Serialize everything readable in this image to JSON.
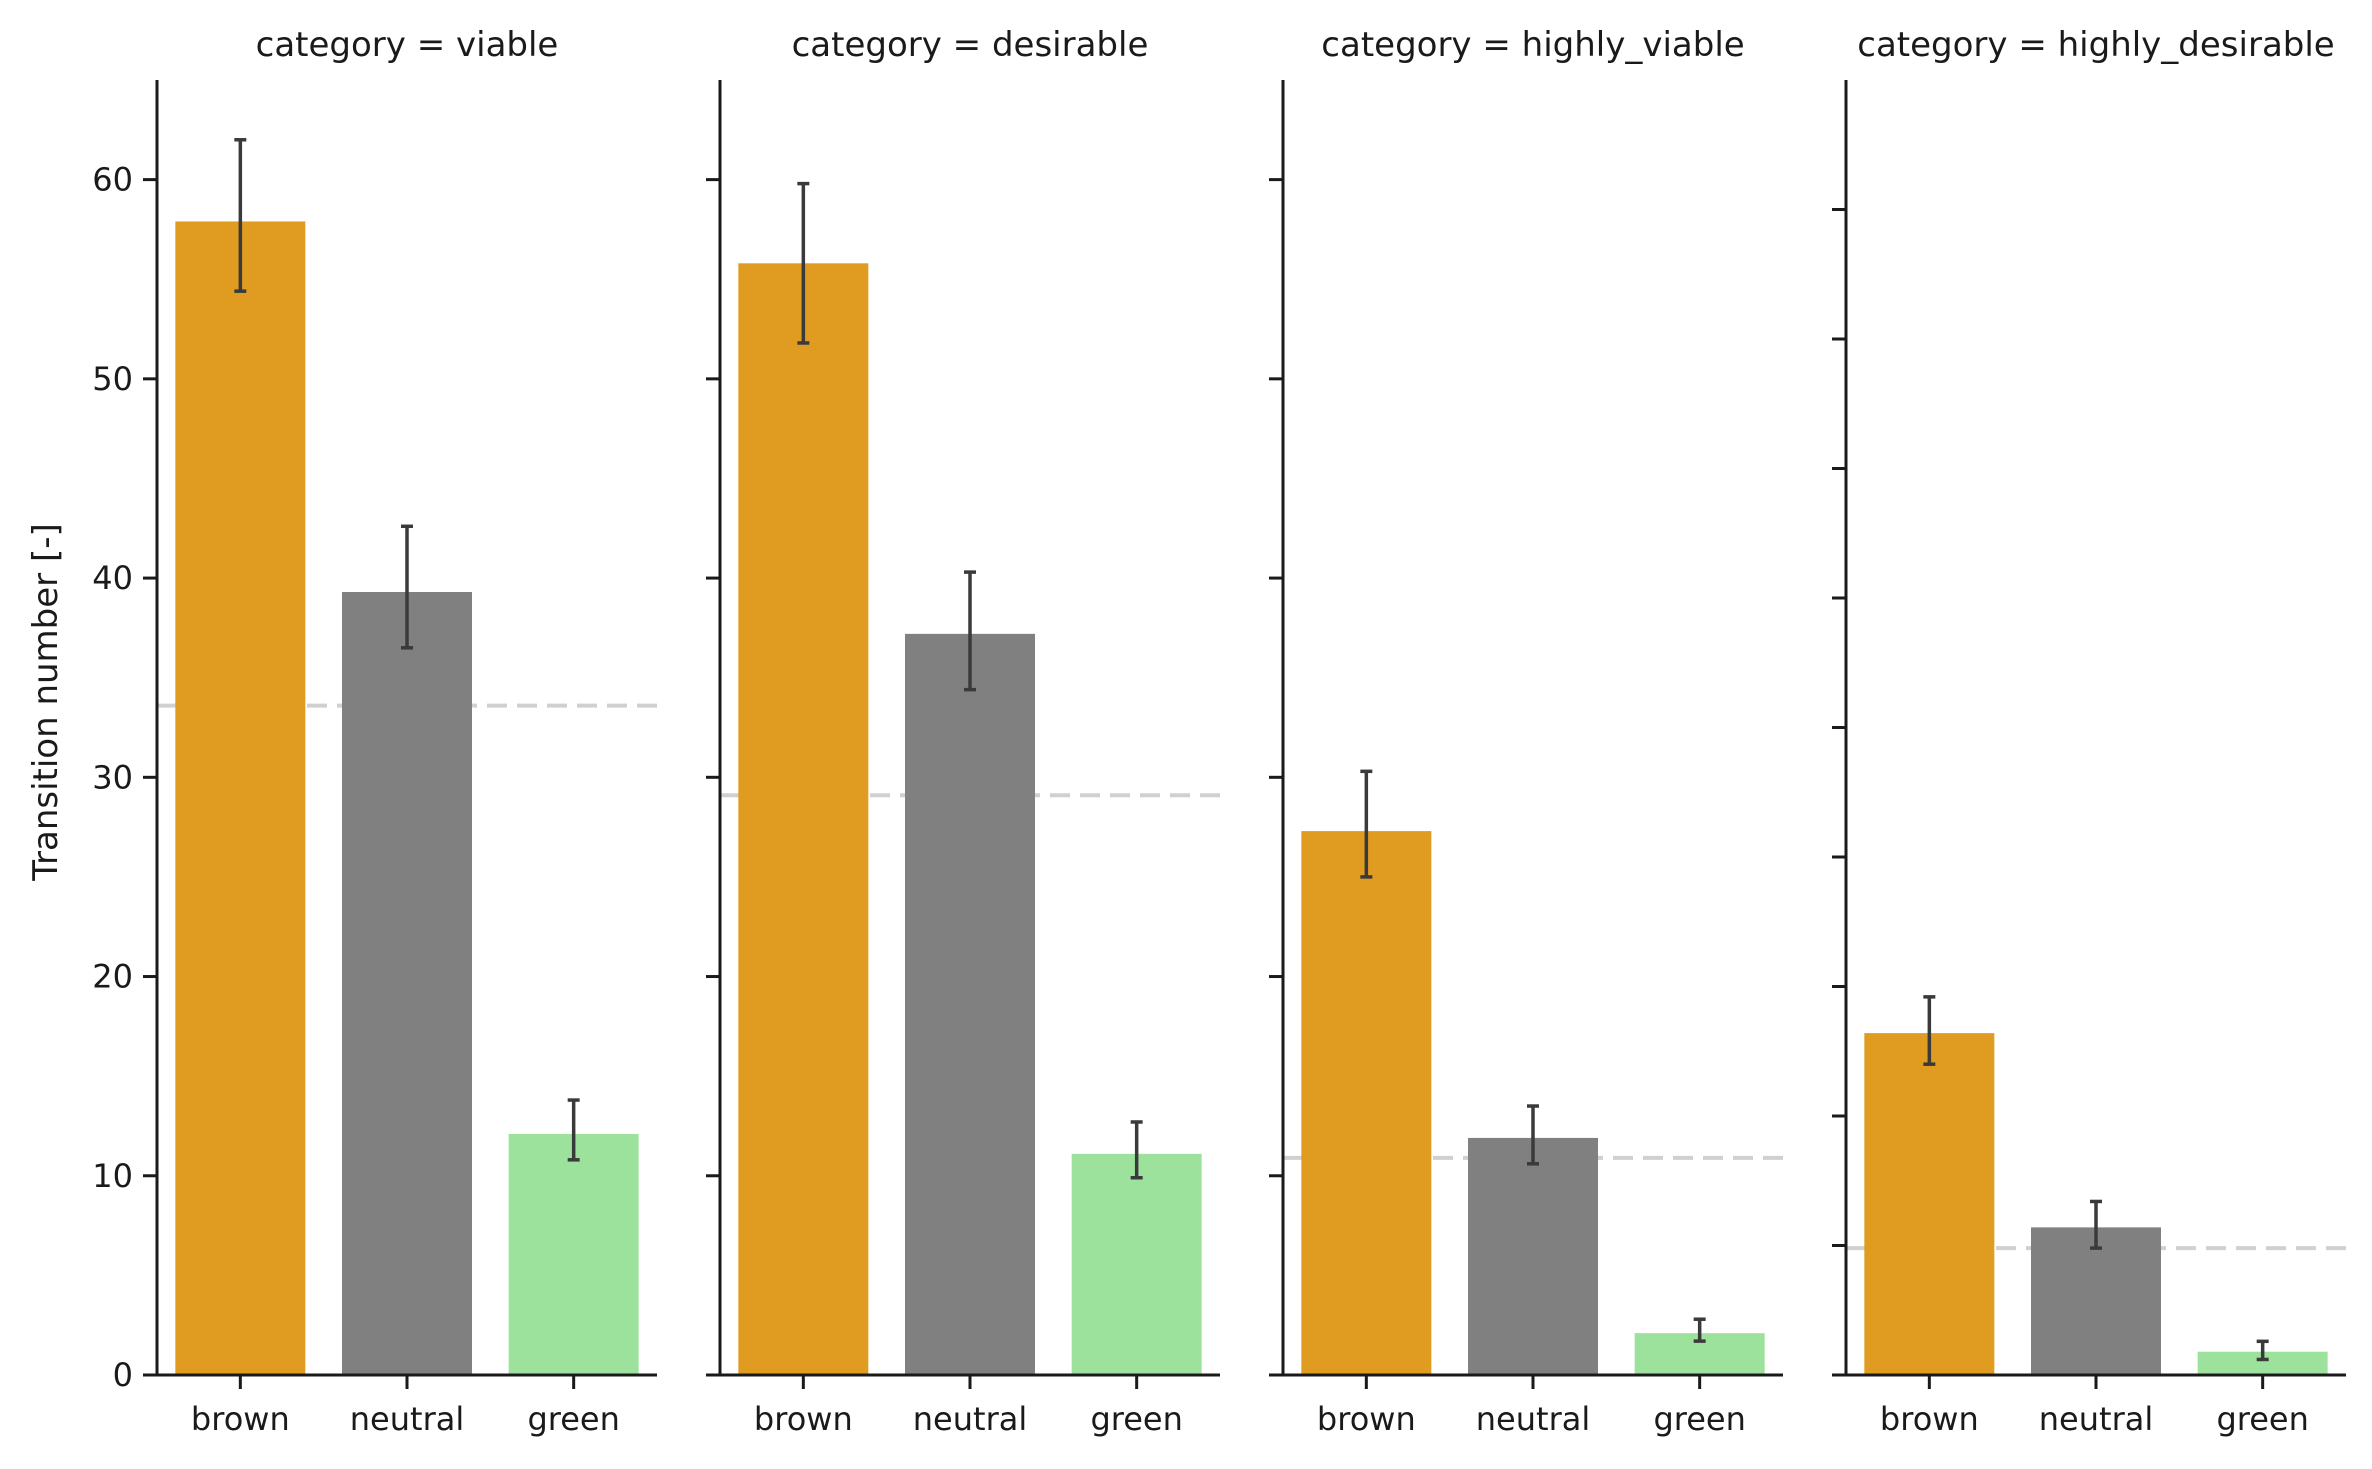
{
  "chart_data": {
    "type": "bar",
    "ylabel": "Transition number [-]",
    "categories": [
      "brown",
      "neutral",
      "green"
    ],
    "colors": {
      "brown": "#df9c20",
      "neutral": "#808080",
      "green": "#9de29c",
      "reference_line": "#d0d0d0",
      "error_bar": "#3a3a3a"
    },
    "y_ticks": [
      0,
      10,
      20,
      30,
      40,
      50,
      60
    ],
    "facets": [
      {
        "title": "category = viable",
        "ylim": [
          0,
          65
        ],
        "show_tick_labels": true,
        "reference_line": 33.6,
        "bars": [
          {
            "category": "brown",
            "value": 57.9,
            "ci": [
              54.4,
              62.0
            ]
          },
          {
            "category": "neutral",
            "value": 39.3,
            "ci": [
              36.5,
              42.6
            ]
          },
          {
            "category": "green",
            "value": 12.1,
            "ci": [
              10.8,
              13.8
            ]
          }
        ]
      },
      {
        "title": "category = desirable",
        "ylim": [
          0,
          65
        ],
        "show_tick_labels": false,
        "reference_line": 29.1,
        "bars": [
          {
            "category": "brown",
            "value": 55.8,
            "ci": [
              51.8,
              59.8
            ]
          },
          {
            "category": "neutral",
            "value": 37.2,
            "ci": [
              34.4,
              40.3
            ]
          },
          {
            "category": "green",
            "value": 11.1,
            "ci": [
              9.9,
              12.7
            ]
          }
        ]
      },
      {
        "title": "category = highly_viable",
        "ylim": [
          0,
          65
        ],
        "show_tick_labels": false,
        "reference_line": 10.9,
        "bars": [
          {
            "category": "brown",
            "value": 27.3,
            "ci": [
              25.0,
              30.3
            ]
          },
          {
            "category": "neutral",
            "value": 11.9,
            "ci": [
              10.6,
              13.5
            ]
          },
          {
            "category": "green",
            "value": 2.1,
            "ci": [
              1.7,
              2.8
            ]
          }
        ]
      },
      {
        "title": "category = highly_desirable",
        "ylim": [
          0,
          50
        ],
        "show_tick_labels": false,
        "y_ticks": [
          0,
          5,
          10,
          15,
          20,
          25,
          30,
          35,
          40,
          45
        ],
        "reference_line": 4.9,
        "bars": [
          {
            "category": "brown",
            "value": 13.2,
            "ci": [
              12.0,
              14.6
            ]
          },
          {
            "category": "neutral",
            "value": 5.7,
            "ci": [
              4.9,
              6.7
            ]
          },
          {
            "category": "green",
            "value": 0.9,
            "ci": [
              0.6,
              1.3
            ]
          }
        ]
      }
    ]
  }
}
